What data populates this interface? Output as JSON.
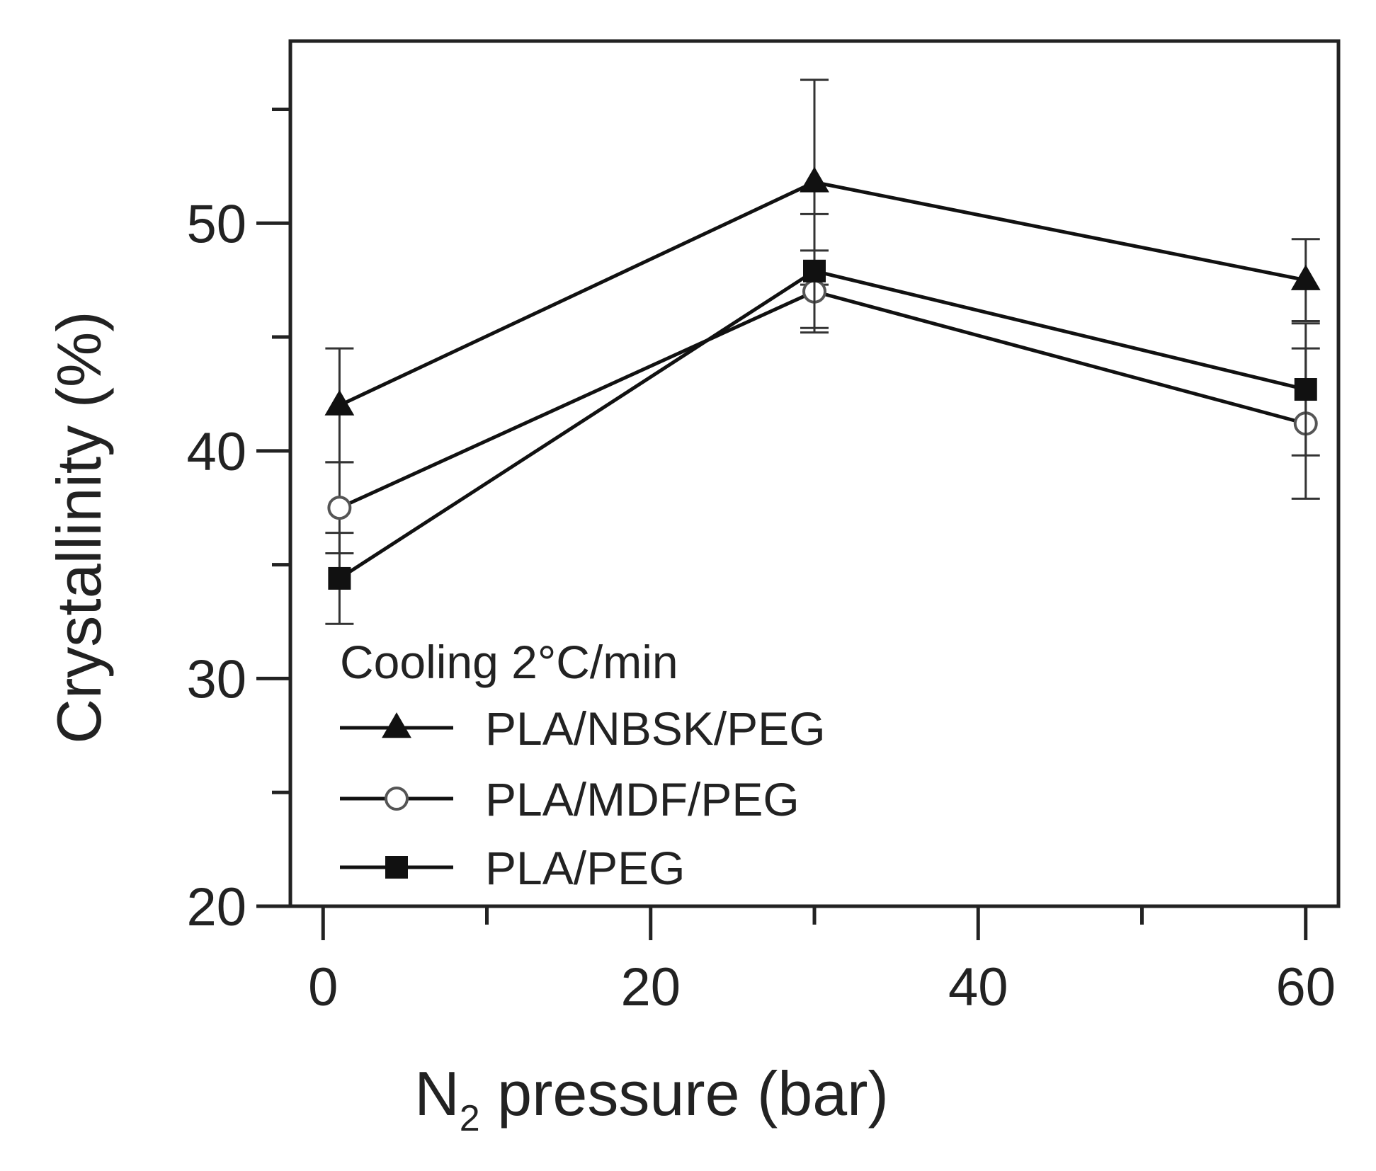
{
  "chart_data": {
    "type": "line",
    "title": "",
    "xlabel_main": "N",
    "xlabel_sub": "2",
    "xlabel_rest": " pressure (bar)",
    "ylabel": "Crystallinity (%)",
    "xlim": [
      -2,
      62
    ],
    "ylim": [
      20,
      58
    ],
    "xticks": [
      0,
      20,
      40,
      60
    ],
    "xticks_minor": [
      10,
      30,
      50
    ],
    "yticks": [
      20,
      30,
      40,
      50
    ],
    "yticks_minor": [
      25,
      35,
      45,
      55
    ],
    "legend_title": "Cooling 2°C/min",
    "legend_position": "bottom-left",
    "series": [
      {
        "name": "PLA/NBSK/PEG",
        "marker": "filled-triangle",
        "x": [
          1,
          30,
          60
        ],
        "y": [
          42.0,
          51.8,
          47.5
        ],
        "err": [
          2.5,
          4.5,
          1.8
        ]
      },
      {
        "name": "PLA/MDF/PEG",
        "marker": "open-circle",
        "x": [
          1,
          30,
          60
        ],
        "y": [
          37.5,
          47.0,
          41.2
        ],
        "err": [
          2.0,
          1.8,
          3.3
        ]
      },
      {
        "name": "PLA/PEG",
        "marker": "filled-square",
        "x": [
          1,
          30,
          60
        ],
        "y": [
          34.4,
          47.9,
          42.7
        ],
        "err": [
          2.0,
          2.5,
          2.9
        ]
      }
    ],
    "colors": {
      "line": "#111111",
      "frame": "#222222",
      "background": "#ffffff"
    }
  }
}
